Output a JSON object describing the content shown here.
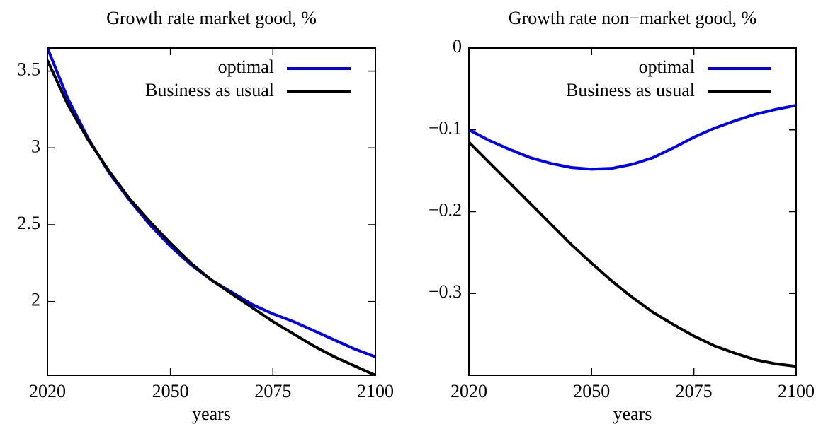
{
  "chart_data": [
    {
      "type": "line",
      "title": "Growth rate market good, %",
      "x_label": "years",
      "x": [
        2020,
        2025,
        2030,
        2035,
        2040,
        2045,
        2050,
        2055,
        2060,
        2065,
        2070,
        2075,
        2080,
        2085,
        2090,
        2095,
        2100
      ],
      "series": [
        {
          "name": "optimal",
          "color": "#0000ee",
          "values": [
            3.65,
            3.32,
            3.06,
            2.84,
            2.66,
            2.5,
            2.36,
            2.24,
            2.14,
            2.06,
            1.98,
            1.92,
            1.87,
            1.81,
            1.75,
            1.69,
            1.64
          ]
        },
        {
          "name": "Business as usual",
          "color": "#000000",
          "values": [
            3.57,
            3.28,
            3.05,
            2.85,
            2.67,
            2.52,
            2.38,
            2.25,
            2.14,
            2.05,
            1.96,
            1.87,
            1.79,
            1.71,
            1.64,
            1.58,
            1.52
          ]
        }
      ],
      "xlim": [
        2020,
        2100
      ],
      "xticks": [
        2020,
        2050,
        2075,
        2100
      ],
      "ylim": [
        1.52,
        3.65
      ],
      "yticks": [
        2,
        2.5,
        3,
        3.5
      ],
      "legend": "upper right"
    },
    {
      "type": "line",
      "title": "Growth rate non−market good, %",
      "x_label": "years",
      "x": [
        2020,
        2025,
        2030,
        2035,
        2040,
        2045,
        2050,
        2055,
        2060,
        2065,
        2070,
        2075,
        2080,
        2085,
        2090,
        2095,
        2100
      ],
      "series": [
        {
          "name": "optimal",
          "color": "#0000ee",
          "values": [
            -0.1,
            -0.113,
            -0.124,
            -0.134,
            -0.141,
            -0.146,
            -0.148,
            -0.147,
            -0.142,
            -0.134,
            -0.122,
            -0.109,
            -0.098,
            -0.089,
            -0.081,
            -0.075,
            -0.07
          ]
        },
        {
          "name": "Business as usual",
          "color": "#000000",
          "values": [
            -0.115,
            -0.14,
            -0.165,
            -0.19,
            -0.215,
            -0.24,
            -0.263,
            -0.285,
            -0.305,
            -0.323,
            -0.338,
            -0.352,
            -0.364,
            -0.373,
            -0.381,
            -0.386,
            -0.389
          ]
        }
      ],
      "xlim": [
        2020,
        2100
      ],
      "xticks": [
        2020,
        2050,
        2075,
        2100
      ],
      "ylim": [
        -0.4,
        0
      ],
      "yticks": [
        {
          "value": -0.3,
          "label": "−0.3"
        },
        {
          "value": -0.2,
          "label": "−0.2"
        },
        {
          "value": -0.1,
          "label": "−0.1"
        },
        0
      ],
      "legend": "upper right"
    }
  ]
}
